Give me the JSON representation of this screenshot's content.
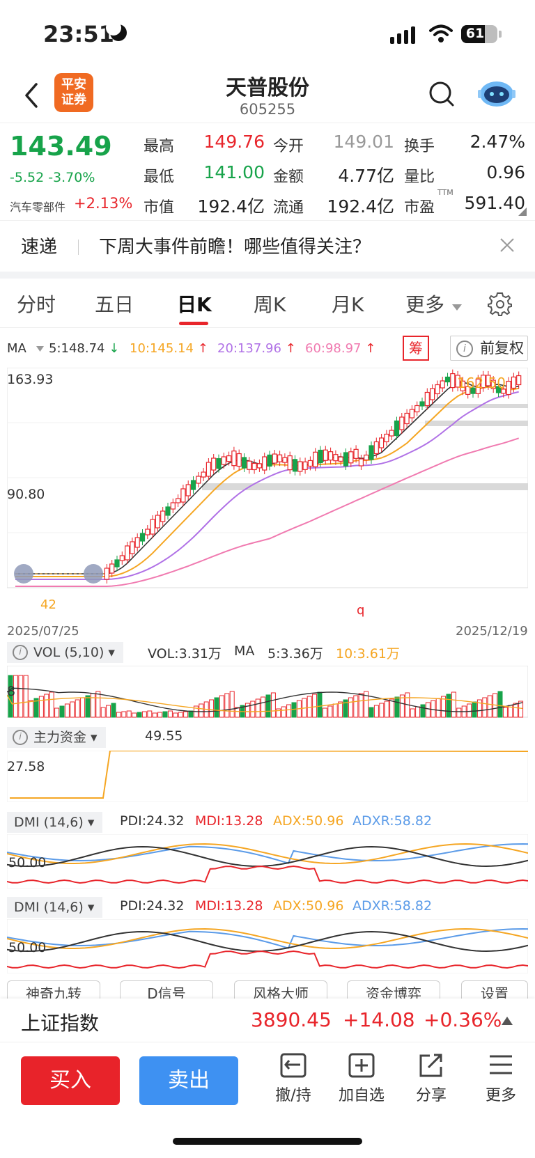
{
  "status": {
    "time": "23:51",
    "battery": "61"
  },
  "header": {
    "logo_line1": "平安",
    "logo_line2": "证券",
    "name": "天普股份",
    "code": "605255"
  },
  "quote": {
    "price": "143.49",
    "change": "-5.52 -3.70%",
    "sector": "汽车零部件",
    "sector_change": "+2.13%",
    "high_label": "最高",
    "high": "149.76",
    "open_label": "今开",
    "open": "149.01",
    "turnover_label": "换手",
    "turnover": "2.47%",
    "low_label": "最低",
    "low": "141.00",
    "amount_label": "金额",
    "amount": "4.77亿",
    "vol_ratio_label": "量比",
    "vol_ratio": "0.96",
    "mktcap_label": "市值",
    "mktcap": "192.4亿",
    "float_label": "流通",
    "float": "192.4亿",
    "pe_label": "市盈",
    "pe_sup": "TTM",
    "pe": "591.40"
  },
  "news": {
    "tag": "速递",
    "title": "下周大事件前瞻！哪些值得关注？"
  },
  "tabs": [
    "分时",
    "五日",
    "日K",
    "周K",
    "月K",
    "更多"
  ],
  "ma": {
    "label": "MA",
    "ma5": "5:148.74",
    "ma10": "10:145.14",
    "ma20": "20:137.96",
    "ma60": "60:98.97",
    "chou": "筹",
    "fq": "前复权",
    "colors": {
      "ma5": "#333333",
      "ma10": "#f5a623",
      "ma20": "#b071e6",
      "ma60": "#f07ab0"
    }
  },
  "kchart": {
    "ymax": "163.93",
    "ymid": "90.80",
    "ymin": "42",
    "high_marker": "162.50",
    "start_date": "2025/07/25",
    "end_date": "2025/12/19",
    "marker_q": "q"
  },
  "vol": {
    "tag": "VOL (5,10)",
    "vol": "VOL:3.31万",
    "ma": "MA",
    "ma5": "5:3.36万",
    "ma10": "10:3.61万",
    "axis": "8"
  },
  "zhuli": {
    "tag": "主力资金",
    "value": "49.55",
    "axis": "27.58"
  },
  "dmi": {
    "tag": "DMI (14,6)",
    "pdi": "PDI:24.32",
    "mdi": "MDI:13.28",
    "adx": "ADX:50.96",
    "adxr": "ADXR:58.82",
    "axis": "50.00"
  },
  "bottom_tabs": [
    "神奇九转",
    "D信号",
    "风格大师",
    "资金博弈",
    "设置"
  ],
  "index": {
    "name": "上证指数",
    "value": "3890.45",
    "change": "+14.08",
    "pct": "+0.36%"
  },
  "actions": {
    "buy": "买入",
    "sell": "卖出",
    "cancel": "撤/持",
    "add": "加自选",
    "share": "分享",
    "more": "更多"
  }
}
